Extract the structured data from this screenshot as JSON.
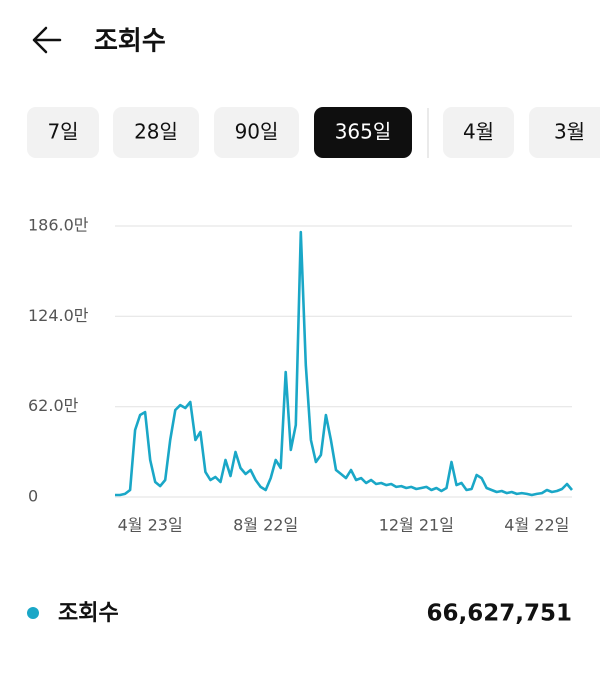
{
  "header": {
    "title": "조회수"
  },
  "tabs": [
    {
      "label": "7일",
      "selected": false
    },
    {
      "label": "28일",
      "selected": false
    },
    {
      "label": "90일",
      "selected": false
    },
    {
      "label": "365일",
      "selected": true
    },
    {
      "label": "4월",
      "selected": false
    },
    {
      "label": "3월",
      "selected": false
    }
  ],
  "chart_data": {
    "type": "line",
    "categories": [
      null,
      null,
      null,
      null,
      null,
      null,
      null,
      "4월 23일",
      null,
      null,
      null,
      null,
      null,
      null,
      null,
      null,
      null,
      null,
      null,
      null,
      null,
      null,
      null,
      null,
      null,
      null,
      null,
      null,
      null,
      null,
      "8월 22일",
      null,
      null,
      null,
      null,
      null,
      null,
      null,
      null,
      null,
      null,
      null,
      null,
      null,
      null,
      null,
      null,
      null,
      null,
      null,
      null,
      null,
      null,
      null,
      null,
      null,
      null,
      null,
      null,
      null,
      "12월 21일",
      null,
      null,
      null,
      null,
      null,
      null,
      null,
      null,
      null,
      null,
      null,
      null,
      null,
      null,
      null,
      null,
      null,
      null,
      null,
      null,
      null,
      null,
      null,
      "4월 22일",
      null,
      null,
      null,
      null,
      null,
      null,
      null
    ],
    "series": [
      {
        "name": "조회수",
        "color": "#1aa7c7",
        "values": [
          14000,
          14000,
          21000,
          48000,
          460000,
          563000,
          583000,
          254000,
          103000,
          75000,
          117000,
          391000,
          597000,
          631000,
          611000,
          652000,
          391000,
          446000,
          172000,
          117000,
          137000,
          103000,
          254000,
          144000,
          309000,
          199000,
          158000,
          185000,
          117000,
          69000,
          48000,
          130000,
          254000,
          199000,
          858000,
          323000,
          494000,
          1819000,
          906000,
          391000,
          240000,
          288000,
          563000,
          391000,
          185000,
          158000,
          130000,
          185000,
          117000,
          130000,
          96000,
          117000,
          89000,
          96000,
          82000,
          89000,
          69000,
          75000,
          62000,
          69000,
          55000,
          62000,
          69000,
          48000,
          62000,
          41000,
          62000,
          240000,
          82000,
          96000,
          48000,
          55000,
          151000,
          130000,
          62000,
          48000,
          34000,
          41000,
          27000,
          34000,
          21000,
          27000,
          21000,
          14000,
          21000,
          27000,
          48000,
          34000,
          41000,
          55000,
          89000,
          48000
        ]
      }
    ],
    "ylim": [
      0,
      1860000
    ],
    "yticks": [
      0,
      {
        "value": 620000,
        "label": "62.0만"
      },
      {
        "value": 1240000,
        "label": "124.0만"
      },
      {
        "value": 1860000,
        "label": "186.0만"
      }
    ],
    "grid": true
  },
  "summary": {
    "total": "66,627,751"
  }
}
